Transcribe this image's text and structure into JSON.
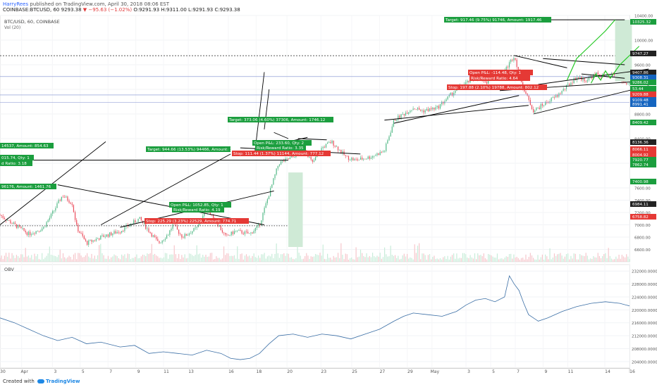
{
  "header": {
    "author": "HarryRees",
    "published": "published on TradingView.com, April 30, 2018 08:06 EST",
    "quote_prefix": "COINBASE:BTCUSD, 60 9293.38",
    "quote_change": "▼ −95.63 (−1.02%)",
    "quote_ohlc": "O:9291.93 H:9311.00 L:9291.93 C:9293.38"
  },
  "footer": {
    "created": "Created with",
    "brand": "TradingView"
  },
  "chart_data": [
    {
      "type": "candlestick",
      "title": "BTC/USD, 60, COINBASE",
      "subtitle": "Vol (20)",
      "ylim": [
        6400,
        10400
      ],
      "y_ticks": [
        6600,
        6800,
        7000,
        7200,
        7400,
        7600,
        8000,
        8400,
        8800,
        9200,
        9600,
        10000,
        10400
      ],
      "x_ticks": [
        "30",
        "Apr",
        "3",
        "5",
        "7",
        "9",
        "11",
        "13",
        "16",
        "18",
        "20",
        "23",
        "25",
        "27",
        "29",
        "May",
        "3",
        "5",
        "7",
        "9",
        "11",
        "14",
        "16"
      ],
      "price_path": [
        [
          0,
          7160
        ],
        [
          3,
          7000
        ],
        [
          6,
          6850
        ],
        [
          9,
          6950
        ],
        [
          11,
          7200
        ],
        [
          13,
          7480
        ],
        [
          15,
          7350
        ],
        [
          16,
          6950
        ],
        [
          18,
          6700
        ],
        [
          21,
          6800
        ],
        [
          25,
          6900
        ],
        [
          29,
          7100
        ],
        [
          31,
          6900
        ],
        [
          33,
          6700
        ],
        [
          35,
          6850
        ],
        [
          36,
          7000
        ],
        [
          38,
          6800
        ],
        [
          41,
          6950
        ],
        [
          43,
          7250
        ],
        [
          45,
          7050
        ],
        [
          47,
          6800
        ],
        [
          49,
          6900
        ],
        [
          52,
          6850
        ],
        [
          54,
          7000
        ],
        [
          56,
          7500
        ],
        [
          58,
          8000
        ],
        [
          61,
          8100
        ],
        [
          63,
          8300
        ],
        [
          65,
          8000
        ],
        [
          67,
          8250
        ],
        [
          69,
          8350
        ],
        [
          72,
          8100
        ],
        [
          74,
          8050
        ],
        [
          77,
          8100
        ],
        [
          80,
          8200
        ],
        [
          82,
          8700
        ],
        [
          84,
          8800
        ],
        [
          86,
          8900
        ],
        [
          88,
          8850
        ],
        [
          91,
          8900
        ],
        [
          93,
          9050
        ],
        [
          95,
          9200
        ],
        [
          97,
          9300
        ],
        [
          99,
          9400
        ],
        [
          101,
          9300
        ],
        [
          103,
          9450
        ],
        [
          105,
          9500
        ],
        [
          107,
          9750
        ],
        [
          109,
          9200
        ],
        [
          111,
          8850
        ],
        [
          113,
          8950
        ],
        [
          116,
          9100
        ],
        [
          118,
          9250
        ],
        [
          120,
          9400
        ],
        [
          122,
          9350
        ],
        [
          124,
          9450
        ],
        [
          126,
          9400
        ],
        [
          128,
          9450
        ],
        [
          130,
          9300
        ],
        [
          131,
          9300
        ]
      ],
      "series": [
        {
          "name": "Target",
          "values": [
            944.66,
            373.06,
            917.46
          ]
        }
      ],
      "overlays": {
        "targets": [
          "Target: 944.66 (13.53%) 94466, Amount: 1",
          "Target: 373.06 (4.60%) 37306, Amount: 1746.12",
          "Target: 917.46 (9.75%) 91746, Amount: 1917.46",
          "96176, Amount: 1461.76",
          "14537, Amount: 854.63"
        ],
        "open_pnl": [
          "Open P&L: 1052.85, Qty: 1",
          "Open P&L: 233.60, Qty: 2",
          "Open P&L: -114.48, Qty: 1",
          "015.74, Qty: 1"
        ],
        "risk_reward": [
          "Risk/Reward Ratio: 4.19",
          "Risk/Reward Ratio: 3.35",
          "Risk/Reward Ratio: 4.64",
          "d Ratio: 3.18"
        ],
        "stops": [
          "Stop: 225.29 (3.23%) 22529, Amount: 774.71",
          "Stop: 111.44 (1.37%) 11144, Amount: 777.12",
          "Stop: 197.88 (2.10%) 19788, Amount: 802.12"
        ]
      },
      "price_labels": [
        {
          "value": "10325.32",
          "color": "#1b9e3e"
        },
        {
          "value": "9747.27",
          "color": "#222222"
        },
        {
          "value": "9407.86",
          "color": "#222222"
        },
        {
          "value": "9308.31",
          "color": "#1565c0"
        },
        {
          "value": "9286.02",
          "color": "#1b9e3e"
        },
        {
          "value": "53.44",
          "color": "#1b9e3e"
        },
        {
          "value": "9209.88",
          "color": "#e53935"
        },
        {
          "value": "9109.48",
          "color": "#1565c0"
        },
        {
          "value": "8991.41",
          "color": "#1565c0"
        },
        {
          "value": "8409.42",
          "color": "#1b9e3e"
        },
        {
          "value": "8136.36",
          "color": "#222222"
        },
        {
          "value": "8066.11",
          "color": "#e53935"
        },
        {
          "value": "8004.92",
          "color": "#e53935"
        },
        {
          "value": "7920.77",
          "color": "#1b9e3e"
        },
        {
          "value": "7862.74",
          "color": "#1b9e3e"
        },
        {
          "value": "7400.98",
          "color": "#1b9e3e"
        },
        {
          "value": "6984.11",
          "color": "#222222"
        },
        {
          "value": "6758.82",
          "color": "#e53935"
        }
      ]
    },
    {
      "type": "line",
      "title": "OBV",
      "ylim": [
        202000,
        234000
      ],
      "y_ticks": [
        204000,
        208000,
        212000,
        216000,
        220000,
        224000,
        228000,
        232000
      ],
      "y_tick_labels": [
        "204000.0000",
        "208000.0000",
        "212000.0000",
        "216000.0000",
        "220000.0000",
        "224000.0000",
        "228000.0000",
        "232000.0000"
      ],
      "series": [
        {
          "values": [
            [
              0,
              217500
            ],
            [
              3,
              216000
            ],
            [
              6,
              214000
            ],
            [
              9,
              212000
            ],
            [
              12,
              210500
            ],
            [
              15,
              211500
            ],
            [
              18,
              209500
            ],
            [
              21,
              210000
            ],
            [
              25,
              208500
            ],
            [
              28,
              209000
            ],
            [
              31,
              206500
            ],
            [
              34,
              207000
            ],
            [
              37,
              206500
            ],
            [
              40,
              206000
            ],
            [
              43,
              207500
            ],
            [
              46,
              206500
            ],
            [
              48,
              205000
            ],
            [
              50,
              204600
            ],
            [
              52,
              205000
            ],
            [
              54,
              206500
            ],
            [
              56,
              209500
            ],
            [
              58,
              212000
            ],
            [
              61,
              212500
            ],
            [
              64,
              211500
            ],
            [
              67,
              212500
            ],
            [
              70,
              212000
            ],
            [
              73,
              211000
            ],
            [
              76,
              212500
            ],
            [
              79,
              214000
            ],
            [
              82,
              216500
            ],
            [
              84,
              218000
            ],
            [
              86,
              219000
            ],
            [
              89,
              218500
            ],
            [
              92,
              218000
            ],
            [
              95,
              219500
            ],
            [
              97,
              221500
            ],
            [
              99,
              223000
            ],
            [
              101,
              223500
            ],
            [
              103,
              222500
            ],
            [
              105,
              224000
            ],
            [
              106,
              230500
            ],
            [
              107,
              228000
            ],
            [
              108,
              226000
            ],
            [
              109,
              222000
            ],
            [
              110,
              218500
            ],
            [
              112,
              216500
            ],
            [
              114,
              217500
            ],
            [
              117,
              219500
            ],
            [
              120,
              221000
            ],
            [
              123,
              222000
            ],
            [
              126,
              222500
            ],
            [
              129,
              222000
            ],
            [
              131,
              221200
            ]
          ]
        }
      ]
    }
  ]
}
